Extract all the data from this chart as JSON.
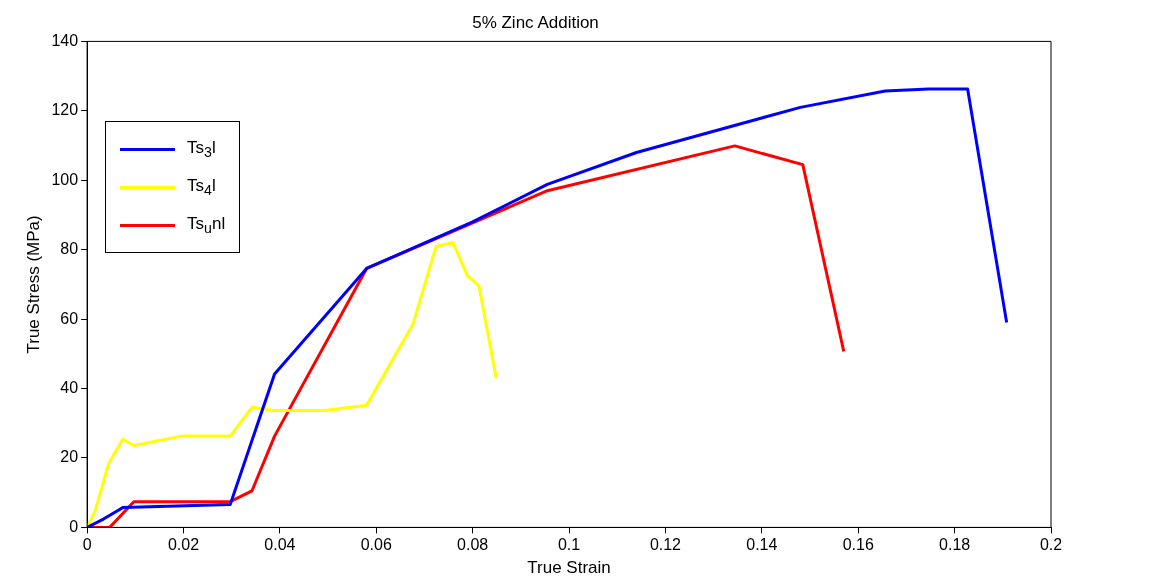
{
  "chart_data": {
    "type": "line",
    "title": "5% Zinc Addition",
    "xlabel": "True Strain",
    "ylabel": "True Stress (MPa)",
    "xlim": [
      0,
      0.2
    ],
    "xticks": [
      0,
      0.02,
      0.04,
      0.06,
      0.08,
      0.1,
      0.12,
      0.14,
      0.16,
      0.18,
      0.2
    ],
    "ylim": [
      0,
      140
    ],
    "yticks": [
      0,
      20,
      40,
      60,
      80,
      100,
      120,
      140
    ],
    "grid": false,
    "legend": "top left",
    "marker": "none",
    "line_style": "solid",
    "series": [
      {
        "name": "Ts$_{3}$l",
        "color": "#0000ff",
        "x": [
          0,
          0.0034,
          0.0074,
          0.0297,
          0.0389,
          0.058,
          0.08,
          0.0955,
          0.114,
          0.148,
          0.1656,
          0.1746,
          0.1827,
          0.1908
        ],
        "values": [
          0,
          2.4,
          5.7,
          6.6,
          44.2,
          74.6,
          88,
          98.8,
          108,
          121,
          125.7,
          126.3,
          126.3,
          59
        ]
      },
      {
        "name": "Ts$_{4}$l",
        "color": "#ffff00",
        "x": [
          0,
          0.0016,
          0.0045,
          0.0074,
          0.0097,
          0.0196,
          0.0297,
          0.0342,
          0.0387,
          0.0494,
          0.058,
          0.0676,
          0.0724,
          0.0759,
          0.0789,
          0.0813,
          0.0849
        ],
        "values": [
          0,
          4.5,
          18.5,
          25.4,
          23.6,
          26.3,
          26.3,
          34.6,
          33.7,
          33.7,
          35.2,
          58.5,
          80.9,
          82.1,
          72.5,
          69.6,
          43
        ]
      },
      {
        "name": "Ts$_{u}$nl",
        "color": "#ff0000",
        "x": [
          0,
          0.0047,
          0.0097,
          0.0297,
          0.0342,
          0.0389,
          0.058,
          0.0955,
          0.1344,
          0.1485,
          0.157
        ],
        "values": [
          0,
          0,
          7.4,
          7.4,
          10.5,
          26.3,
          74.6,
          97,
          109.9,
          104.5,
          50.7
        ]
      }
    ]
  }
}
